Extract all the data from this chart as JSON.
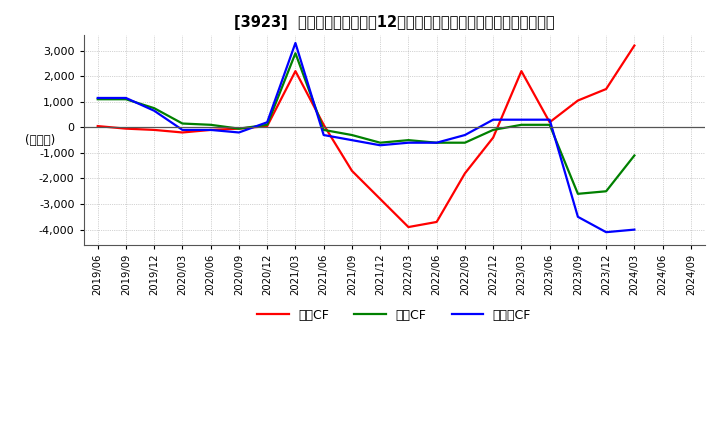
{
  "title": "[3923]  キャッシュフローの12か月移動合計の対前年同期増減額の推移",
  "ylabel": "(百万円)",
  "ylim": [
    -4600,
    3600
  ],
  "yticks": [
    -4000,
    -3000,
    -2000,
    -1000,
    0,
    1000,
    2000,
    3000
  ],
  "legend": [
    "営業CF",
    "投資CF",
    "フリーCF"
  ],
  "legend_colors": [
    "#ff0000",
    "#008000",
    "#0000ff"
  ],
  "x_labels": [
    "2019/06",
    "2019/09",
    "2019/12",
    "2020/03",
    "2020/06",
    "2020/09",
    "2020/12",
    "2021/03",
    "2021/06",
    "2021/09",
    "2021/12",
    "2022/03",
    "2022/06",
    "2022/09",
    "2022/12",
    "2023/03",
    "2023/06",
    "2023/09",
    "2023/12",
    "2024/03",
    "2024/06",
    "2024/09"
  ],
  "operating_cf": [
    50,
    -50,
    -100,
    -200,
    -100,
    -50,
    50,
    2200,
    100,
    -1700,
    -2800,
    -3900,
    -3700,
    -1800,
    -400,
    2200,
    200,
    1050,
    1500,
    3200,
    null,
    null
  ],
  "investing_cf": [
    1100,
    1100,
    750,
    150,
    100,
    -50,
    100,
    2900,
    -100,
    -300,
    -600,
    -500,
    -600,
    -600,
    -100,
    100,
    100,
    -2600,
    -2500,
    -1100,
    null,
    null
  ],
  "free_cf": [
    1150,
    1150,
    650,
    -100,
    -100,
    -200,
    200,
    3300,
    -300,
    -500,
    -700,
    -600,
    -600,
    -300,
    300,
    300,
    300,
    -3500,
    -4100,
    -4000,
    null,
    null
  ],
  "background_color": "#ffffff",
  "grid_color": "#aaaaaa",
  "line_width": 1.6
}
